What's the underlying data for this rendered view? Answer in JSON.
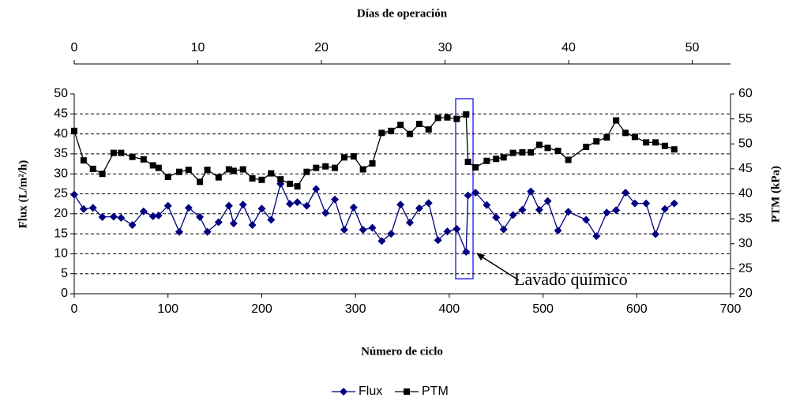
{
  "chart_data": {
    "type": "line",
    "x2label": "Días de operación",
    "xlabel": "Número de ciclo",
    "ylabel": "Flux (L/m²/h)",
    "y2label": "PTM (kPa)",
    "annotation": "Lavado químico",
    "x": [
      0,
      10,
      20,
      30,
      42,
      50,
      62,
      74,
      84,
      90,
      100,
      112,
      122,
      134,
      142,
      154,
      165,
      170,
      180,
      190,
      200,
      210,
      220,
      230,
      238,
      248,
      258,
      268,
      278,
      288,
      298,
      308,
      318,
      328,
      338,
      348,
      358,
      368,
      378,
      388,
      398,
      408,
      418,
      420,
      428,
      440,
      450,
      458,
      468,
      478,
      487,
      496,
      505,
      516,
      527,
      546,
      557,
      568,
      578,
      588,
      598,
      610,
      620,
      630,
      640
    ],
    "series": [
      {
        "name": "Flux",
        "color": "#000080",
        "marker": "diamond",
        "axis": "y",
        "values": [
          24.8,
          21.2,
          21.5,
          19.2,
          19.3,
          19,
          17.2,
          20.6,
          19.4,
          19.6,
          22,
          15.5,
          21.5,
          19.2,
          15.5,
          17.9,
          22,
          17.6,
          22.3,
          17.2,
          21.3,
          18.5,
          27.5,
          22.5,
          22.9,
          22,
          26.2,
          20.2,
          23.6,
          16,
          21.6,
          16,
          16.5,
          13.2,
          15,
          22.3,
          17.8,
          21.4,
          22.7,
          13.4,
          15.6,
          16.2,
          10.5,
          24.6,
          25.3,
          22.2,
          19.1,
          16.1,
          19.7,
          21,
          25.6,
          21,
          23.2,
          15.8,
          20.5,
          18.5,
          14.4,
          20.3,
          20.9,
          25.3,
          22.6,
          22.6,
          14.9,
          21.2,
          22.6
        ]
      },
      {
        "name": "PTM",
        "color": "#000000",
        "marker": "square",
        "axis": "y2",
        "values": [
          52.6,
          46.7,
          45,
          44,
          48.2,
          48.2,
          47.4,
          46.9,
          45.7,
          45.2,
          43.4,
          44.4,
          44.8,
          42.4,
          44.8,
          43.3,
          44.9,
          44.6,
          44.9,
          43.1,
          42.8,
          44.1,
          42.9,
          42,
          41.5,
          44.4,
          45.2,
          45.5,
          45.2,
          47.3,
          47.5,
          44.9,
          46.1,
          52.2,
          52.6,
          53.8,
          52,
          54,
          52.9,
          55.2,
          55.3,
          55,
          55.9,
          46.4,
          45.3,
          46.6,
          47,
          47.3,
          48.2,
          48.3,
          48.3,
          49.8,
          49.2,
          48.6,
          46.8,
          49.4,
          50.5,
          51.3,
          54.7,
          52.2,
          51.4,
          50.3,
          50.3,
          49.6,
          48.9
        ]
      }
    ],
    "xlim": [
      0,
      700
    ],
    "xticks": [
      0,
      100,
      200,
      300,
      400,
      500,
      600,
      700
    ],
    "x2lim": [
      0,
      53.1
    ],
    "x2ticks": [
      0,
      10,
      20,
      30,
      40,
      50
    ],
    "ylim": [
      0,
      50
    ],
    "yticks": [
      0,
      5,
      10,
      15,
      20,
      25,
      30,
      35,
      40,
      45,
      50
    ],
    "y2lim": [
      20,
      60
    ],
    "y2ticks": [
      20,
      25,
      30,
      35,
      40,
      45,
      50,
      55,
      60
    ],
    "grid": true,
    "legend": "bottom"
  }
}
